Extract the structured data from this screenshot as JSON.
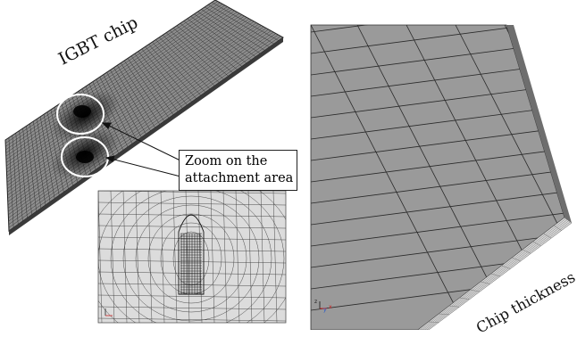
{
  "labels": {
    "chip": "IGBT chip",
    "zoom_line1": "Zoom on the",
    "zoom_line2": "attachment area",
    "thickness": "Chip thickness"
  },
  "axis_triad": {
    "z": "z",
    "y": "y",
    "x": "x"
  },
  "colors": {
    "mesh_face": "#9a9a9a",
    "mesh_line": "#2a2a2a",
    "zoom_background": "#dcdcdc",
    "highlight_circle": "#ffffff",
    "triad_x": "#cc2222",
    "triad_y": "#2255cc",
    "triad_z": "#222222"
  }
}
